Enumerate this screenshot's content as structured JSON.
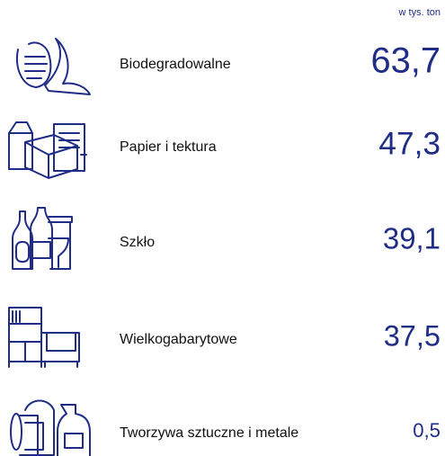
{
  "chart_data": {
    "type": "list",
    "unit_label": "w tys. ton",
    "categories": [
      "Biodegradowalne",
      "Papier i tektura",
      "Szkło",
      "Wielkogabarytowe",
      "Tworzywa sztuczne i metale"
    ],
    "values": [
      63.7,
      47.3,
      39.1,
      37.5,
      0.5
    ],
    "value_labels": [
      "63,7",
      "47,3",
      "39,1",
      "37,5",
      "0,5"
    ],
    "color": "#1f2d86"
  }
}
